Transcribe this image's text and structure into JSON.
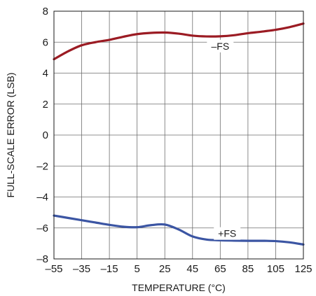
{
  "chart_data": {
    "type": "line",
    "xlabel": "TEMPERATURE (°C)",
    "ylabel": "FULL-SCALE ERROR (LSB)",
    "xlim": [
      -55,
      125
    ],
    "ylim": [
      -8,
      8
    ],
    "x_ticks": [
      -55,
      -35,
      -15,
      5,
      25,
      45,
      65,
      85,
      105,
      125
    ],
    "y_ticks": [
      -8,
      -6,
      -4,
      -2,
      0,
      2,
      4,
      6,
      8
    ],
    "x_tick_labels": [
      "–55",
      "–35",
      "–15",
      "5",
      "25",
      "45",
      "65",
      "85",
      "105",
      "125"
    ],
    "y_tick_labels": [
      "–8",
      "–6",
      "–4",
      "–2",
      "0",
      "2",
      "4",
      "6",
      "8"
    ],
    "grid": true,
    "series": [
      {
        "name": "–FS",
        "color": "#9b1b23",
        "x": [
          -55,
          -45,
          -35,
          -25,
          -15,
          -5,
          5,
          15,
          25,
          35,
          45,
          55,
          65,
          75,
          85,
          95,
          105,
          115,
          125
        ],
        "y": [
          4.9,
          5.4,
          5.8,
          6.0,
          6.15,
          6.35,
          6.52,
          6.6,
          6.62,
          6.55,
          6.42,
          6.37,
          6.38,
          6.45,
          6.58,
          6.68,
          6.8,
          6.97,
          7.2
        ]
      },
      {
        "name": "+FS",
        "color": "#3b55a3",
        "x": [
          -55,
          -45,
          -35,
          -25,
          -15,
          -5,
          5,
          15,
          25,
          35,
          45,
          55,
          65,
          75,
          85,
          95,
          105,
          115,
          125
        ],
        "y": [
          -5.2,
          -5.35,
          -5.5,
          -5.65,
          -5.8,
          -5.92,
          -5.95,
          -5.82,
          -5.78,
          -6.1,
          -6.55,
          -6.75,
          -6.8,
          -6.82,
          -6.83,
          -6.83,
          -6.85,
          -6.93,
          -7.07
        ]
      }
    ],
    "annotations": [
      {
        "text": "–FS",
        "series": 0,
        "at_x": 65
      },
      {
        "text": "+FS",
        "series": 1,
        "at_x": 70
      }
    ]
  }
}
